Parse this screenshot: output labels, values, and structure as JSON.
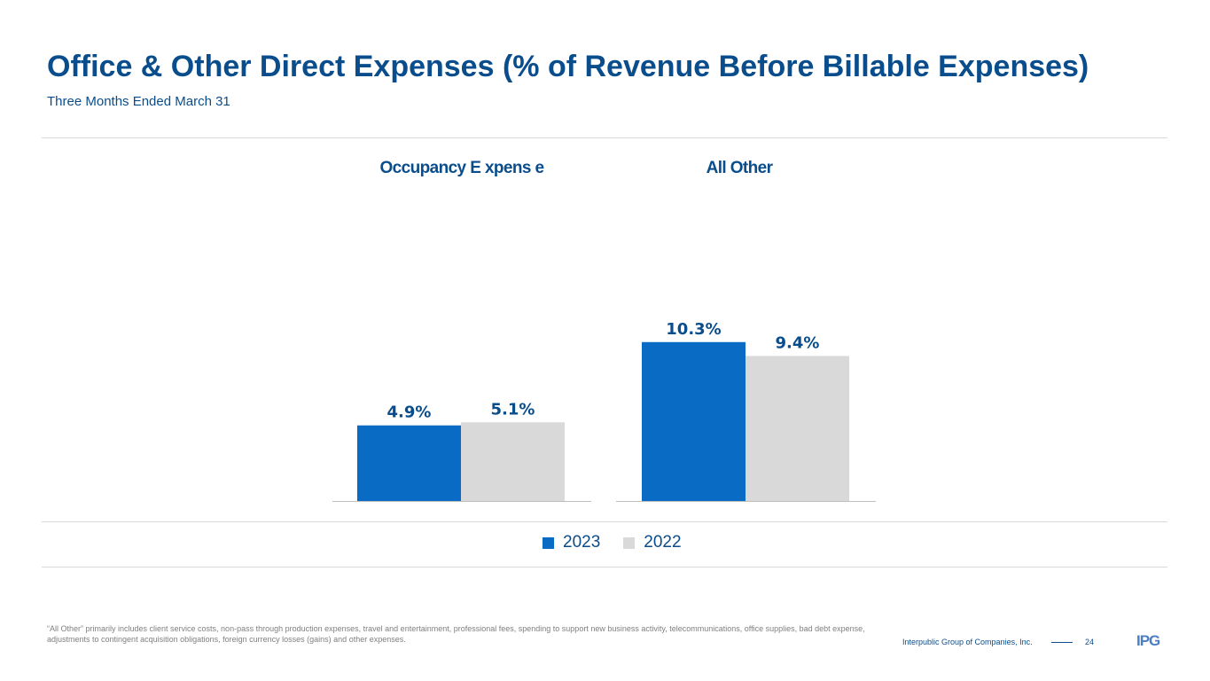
{
  "header": {
    "title": "Office & Other Direct Expenses (% of Revenue Before Billable Expenses)",
    "subtitle": "Three Months Ended March 31"
  },
  "chart_data": {
    "type": "bar",
    "categories": [
      "Occupancy E xpens e",
      "All Other"
    ],
    "series": [
      {
        "name": "2023",
        "values": [
          4.9,
          10.3
        ],
        "labels": [
          "4.9%",
          "10.3%"
        ],
        "color": "#0a6bc4"
      },
      {
        "name": "2022",
        "values": [
          5.1,
          9.4
        ],
        "labels": [
          "5.1%",
          "9.4%"
        ],
        "color": "#d9d9d9"
      }
    ],
    "grid": false,
    "legend_position": "bottom-center"
  },
  "footnote": "“All Other” primarily includes client service costs, non-pass through production expenses, travel and entertainment, professional fees, spending to support new business activity, telecommunications, office supplies, bad debt expense, adjustments to contingent acquisition obligations, foreign currency losses (gains) and other expenses.",
  "footer": {
    "company": "Interpublic Group of Companies, Inc.",
    "page": "24",
    "logo": "IPG"
  },
  "colors": {
    "title": "#0a4d8c",
    "series_2023": "#0a6bc4",
    "series_2022": "#d9d9d9"
  }
}
